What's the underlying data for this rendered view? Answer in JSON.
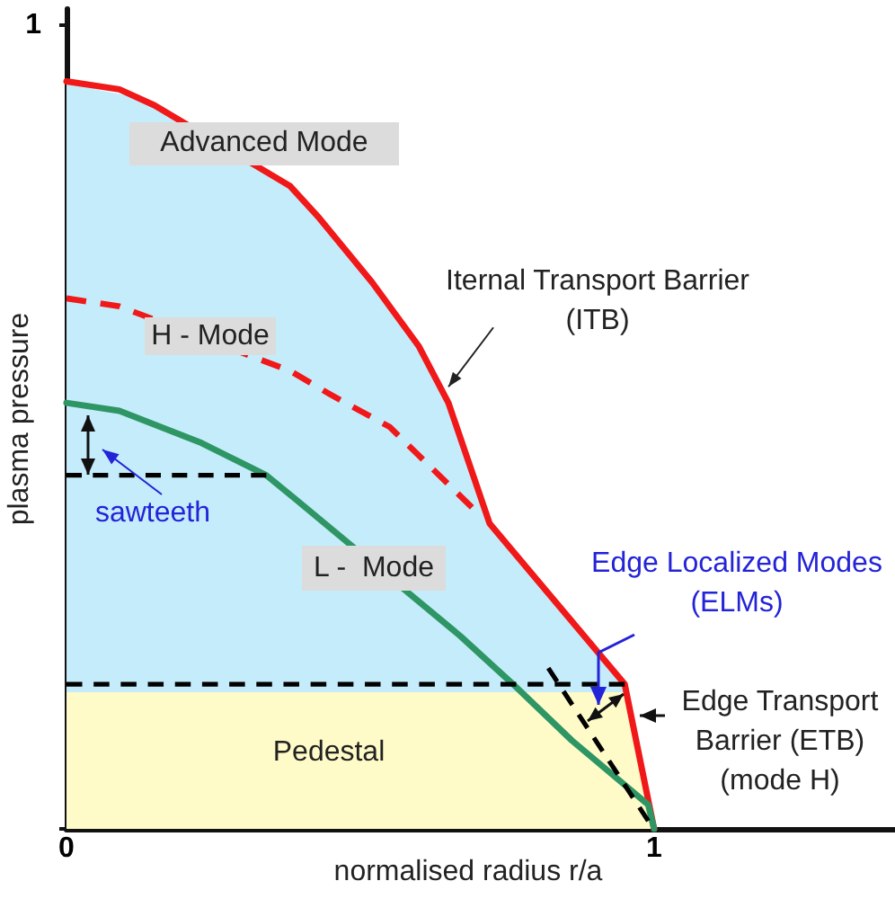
{
  "chart_data": {
    "type": "line",
    "xlabel": "normalised radius r/a",
    "ylabel": "plasma pressure",
    "xlim": [
      0,
      1.41
    ],
    "ylim": [
      0,
      1.02
    ],
    "xticks": [
      0,
      1
    ],
    "yticks": [
      {
        "value": 0,
        "label": null
      },
      1
    ],
    "series": [
      {
        "type": "line",
        "name": "Advanced Mode",
        "color": "#f01818",
        "x": [
          0,
          0.09,
          0.15,
          0.38,
          0.43,
          0.52,
          0.6,
          0.65,
          0.72,
          0.95,
          1
        ],
        "values": [
          0.93,
          0.92,
          0.9,
          0.8,
          0.76,
          0.68,
          0.6,
          0.53,
          0.38,
          0.18,
          0
        ]
      },
      {
        "type": "line",
        "name": "H - Mode",
        "color": "#f01818",
        "line_style": "dashed",
        "x": [
          0,
          0.09,
          0.38,
          0.45,
          0.55,
          0.62,
          0.69
        ],
        "values": [
          0.66,
          0.65,
          0.57,
          0.54,
          0.5,
          0.45,
          0.4
        ]
      },
      {
        "type": "line",
        "name": "L -  Mode",
        "color": "#2e9664",
        "x": [
          0,
          0.09,
          0.23,
          0.34,
          0.39,
          0.67,
          0.76,
          0.86,
          0.99,
          1
        ],
        "values": [
          0.53,
          0.52,
          0.48,
          0.44,
          0.41,
          0.24,
          0.18,
          0.11,
          0.03,
          0
        ]
      },
      {
        "type": "line",
        "color": "#000000",
        "line_style": "dashed",
        "x": [
          0,
          0.34
        ],
        "values": [
          0.44,
          0.44
        ]
      },
      {
        "type": "line",
        "color": "#000000",
        "line_style": "dashed",
        "x": [
          0,
          0.95
        ],
        "values": [
          0.18,
          0.18
        ]
      },
      {
        "type": "line",
        "color": "#000000",
        "line_style": "dashed",
        "x": [
          0.82,
          0.99
        ],
        "values": [
          0.2,
          0.01
        ]
      },
      {
        "type": "area",
        "color": "#c5ecfa",
        "x": [
          0,
          0.05,
          0.12,
          0.16,
          0.36,
          0.41,
          0.48,
          0.56,
          0.59,
          0.61,
          0.64,
          0.66,
          0.71,
          0.73,
          0.85,
          0.95
        ],
        "values": [
          0.93,
          0.92,
          0.91,
          0.9,
          0.81,
          0.78,
          0.72,
          0.64,
          0.61,
          0.59,
          0.54,
          0.51,
          0.4,
          0.37,
          0.27,
          0.18
        ]
      },
      {
        "type": "area",
        "name": "Pedestal",
        "color": "#fffbc8",
        "x": [
          0,
          0.95,
          1
        ],
        "values": [
          0.17,
          0.17,
          0
        ]
      }
    ],
    "annotations": [
      "sawteeth",
      {
        "text": "Iternal Transport Barrier\n(ITB)",
        "x": 0.65,
        "y": 0.55
      },
      "Edge Localized Modes\n(ELMs)",
      "Edge Transport\nBarrier (ETB)\n(mode H)"
    ]
  }
}
